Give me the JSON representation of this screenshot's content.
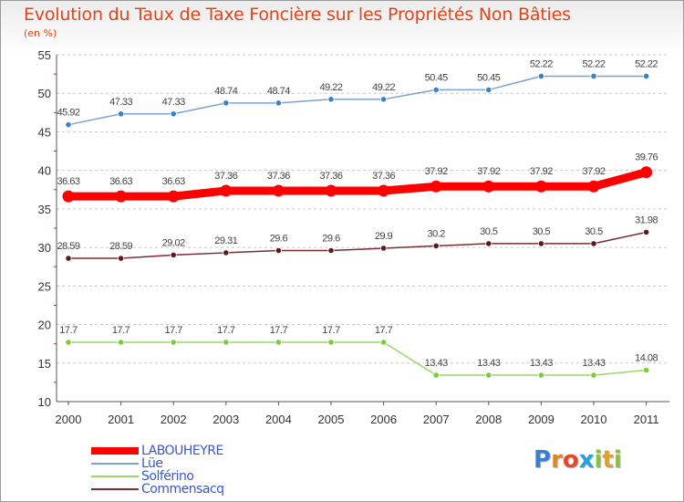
{
  "header": {
    "title": "Evolution du Taux de Taxe Foncière sur les Propriétés Non Bâties",
    "unit": "(en %)"
  },
  "chart_data": {
    "type": "line",
    "title": "Evolution du Taux de Taxe Foncière sur les Propriétés Non Bâties",
    "ylabel": "(en %)",
    "xlabel": "",
    "ylim": [
      10,
      55
    ],
    "yticks": [
      10,
      15,
      20,
      25,
      30,
      35,
      40,
      45,
      50,
      55
    ],
    "grid": "horizontal dashed",
    "categories": [
      "2000",
      "2001",
      "2002",
      "2003",
      "2004",
      "2005",
      "2006",
      "2007",
      "2008",
      "2009",
      "2010",
      "2011"
    ],
    "series": [
      {
        "name": "Lüe",
        "color": "#7aa3d0",
        "marker": "#3d82c4",
        "values": [
          45.92,
          47.33,
          47.33,
          48.74,
          48.74,
          49.22,
          49.22,
          50.45,
          50.45,
          52.22,
          52.22,
          52.22
        ],
        "labels": [
          "45.92",
          "47.33",
          "47.33",
          "48.74",
          "48.74",
          "49.22",
          "49.22",
          "50.45",
          "50.45",
          "52.22",
          "52.22",
          "52.22"
        ]
      },
      {
        "name": "LABOUHEYRE",
        "color": "#ff0000",
        "marker": "#ff0000",
        "values": [
          36.63,
          36.63,
          36.63,
          37.36,
          37.36,
          37.36,
          37.36,
          37.92,
          37.92,
          37.92,
          37.92,
          39.76
        ],
        "labels": [
          "36.63",
          "36.63",
          "36.63",
          "37.36",
          "37.36",
          "37.36",
          "37.36",
          "37.92",
          "37.92",
          "37.92",
          "37.92",
          "39.76"
        ]
      },
      {
        "name": "Commensacq",
        "color": "#7a2c35",
        "marker": "#5a1a22",
        "values": [
          28.59,
          28.59,
          29.02,
          29.31,
          29.6,
          29.6,
          29.9,
          30.2,
          30.5,
          30.5,
          30.5,
          31.98
        ],
        "labels": [
          "28.59",
          "28.59",
          "29.02",
          "29.31",
          "29.6",
          "29.6",
          "29.9",
          "30.2",
          "30.5",
          "30.5",
          "30.5",
          "31.98"
        ]
      },
      {
        "name": "Solférino",
        "color": "#9ad66a",
        "marker": "#7ccc3d",
        "values": [
          17.7,
          17.7,
          17.7,
          17.7,
          17.7,
          17.7,
          17.7,
          13.43,
          13.43,
          13.43,
          13.43,
          14.08
        ],
        "labels": [
          "17.7",
          "17.7",
          "17.7",
          "17.7",
          "17.7",
          "17.7",
          "17.7",
          "13.43",
          "13.43",
          "13.43",
          "13.43",
          "14.08"
        ]
      }
    ]
  },
  "legend": {
    "items": [
      {
        "label": "LABOUHEYRE",
        "color": "#ff0000"
      },
      {
        "label": "Lüe",
        "color": "#7aa3d0"
      },
      {
        "label": "Solférino",
        "color": "#9ad66a"
      },
      {
        "label": "Commensacq",
        "color": "#7a2c35"
      }
    ]
  },
  "logo": {
    "letters": [
      "P",
      "r",
      "o",
      "x",
      "i",
      "t",
      "i"
    ],
    "colors": [
      "#3a7fd0",
      "#e0862a",
      "#e04a2a",
      "#2aa0d8",
      "#8ac43a",
      "#e0a02a",
      "#8ac43a"
    ]
  }
}
